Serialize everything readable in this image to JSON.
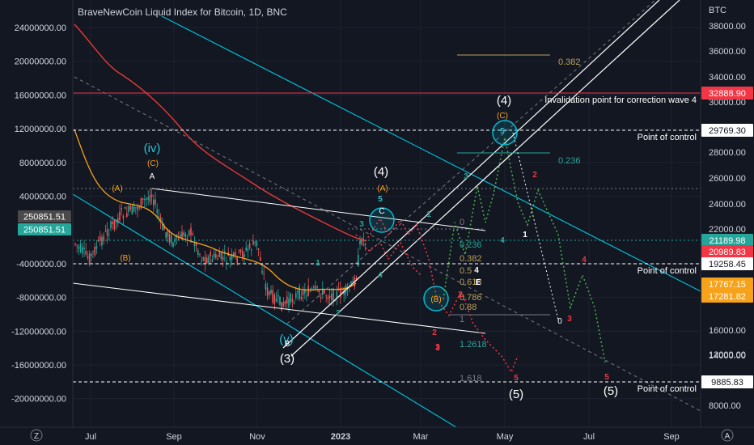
{
  "header": {
    "title": "BraveNewCoin Liquid Index for Bitcoin, 1D, BNC"
  },
  "colors": {
    "background": "#131722",
    "candle_up": "#26a69a",
    "candle_down": "#ef5350",
    "ma_short": "#f7a21b",
    "ma_long": "#e53935",
    "channel": "#ffffff",
    "trendline": "#00bcd4",
    "invalidation": "#f23645",
    "fib_gold": "#b8a05a",
    "fib_teal": "#26a69a",
    "path_red": "#f23645",
    "path_green": "#4caf50",
    "path_white": "#ffffff"
  },
  "chart_data": {
    "type": "line",
    "title": "BraveNewCoin Liquid Index for Bitcoin, 1D, BNC",
    "x_ticks": [
      "Jul",
      "Sep",
      "Nov",
      "2023",
      "Mar",
      "May",
      "Jul",
      "Sep"
    ],
    "left_axis": {
      "ticks": [
        24000000,
        20000000,
        16000000,
        12000000,
        8000000,
        4000000,
        -4000000,
        -8000000,
        -12000000,
        -16000000,
        -20000000
      ],
      "labels": [
        "24000000.00",
        "20000000.00",
        "16000000.00",
        "12000000.00",
        "8000000.00",
        "4000000.00",
        "-4000000.00",
        "-8000000.00",
        "-12000000.00",
        "-16000000.00",
        "-20000000.00"
      ],
      "tags": [
        {
          "label": "250851.51",
          "color": "#4a4a4a"
        },
        {
          "label": "250851.51",
          "color": "#26a69a"
        }
      ]
    },
    "right_axis": {
      "unit": "BTC",
      "scale": "log",
      "range": [
        7000,
        44000
      ],
      "ticks": [
        38000,
        36000,
        34000,
        30000,
        28000,
        26000,
        24000,
        22000,
        16000,
        14000,
        12000,
        10000,
        8000
      ],
      "labels": [
        "38000.00",
        "36000.00",
        "34000.00",
        "30000.00",
        "28000.00",
        "26000.00",
        "24000.00",
        "22000.00",
        "16000.00",
        "14000.00",
        "12000.00",
        "10000.00",
        "8000.00"
      ],
      "tags": [
        {
          "label": "32888.90",
          "value": 32888.9,
          "color": "#f23645"
        },
        {
          "label": "29769.30",
          "value": 29769.3,
          "color": "#ffffff"
        },
        {
          "label": "21189.98",
          "value": 21189.98,
          "color": "#26a69a"
        },
        {
          "label": "20989.83",
          "value": 20989.83,
          "color": "#f23645"
        },
        {
          "label": "19258.45",
          "value": 19258.45,
          "color": "#ffffff"
        },
        {
          "label": "17767.15",
          "value": 17767.15,
          "color": "#f7a21b"
        },
        {
          "label": "17281.82",
          "value": 17281.82,
          "color": "#f7a21b"
        },
        {
          "label": "9885.83",
          "value": 9885.83,
          "color": "#ffffff"
        }
      ]
    },
    "horizontal_levels": [
      {
        "value": 32888.9,
        "label": "Invalidation point for correction wave 4",
        "style": "solid",
        "color": "#f23645"
      },
      {
        "value": 29769.3,
        "label": "Point of control",
        "style": "dashed",
        "color": "#ffffff"
      },
      {
        "value": 19258.45,
        "label": "Point of control",
        "style": "dashed",
        "color": "#ffffff"
      },
      {
        "value": 9885.83,
        "label": "Point of control",
        "style": "dashed",
        "color": "#ffffff"
      }
    ],
    "fib_levels": [
      {
        "label": "0.382",
        "color": "#b8a05a"
      },
      {
        "label": "0.236",
        "color": "#26a69a"
      },
      {
        "label": "0",
        "color": "#787b86"
      },
      {
        "label": "0.236",
        "color": "#26a69a"
      },
      {
        "label": "0.382",
        "color": "#b8a05a"
      },
      {
        "label": "0.5",
        "color": "#b8a05a"
      },
      {
        "label": "0.618",
        "color": "#b8a05a"
      },
      {
        "label": "0.786",
        "color": "#b8a05a"
      },
      {
        "label": "0.88",
        "color": "#b8a05a"
      },
      {
        "label": "1",
        "color": "#787b86"
      },
      {
        "label": "1.2618",
        "color": "#26a69a"
      },
      {
        "label": "1.618",
        "color": "#787b86"
      }
    ],
    "wave_labels": {
      "big": [
        "(4)",
        "(4)",
        "(3)",
        "(5)",
        "(5)",
        "(iv)",
        "(v)"
      ],
      "orange": [
        "(A)",
        "(B)",
        "(C)",
        "(A)",
        "(C)",
        "(B)"
      ],
      "white": [
        "A",
        "B",
        "C",
        "0"
      ],
      "numbers": [
        "1",
        "2",
        "3",
        "4",
        "5",
        "1",
        "2",
        "3",
        "4",
        "5",
        "2",
        "3",
        "4",
        "5",
        "4",
        "5",
        "3",
        "3",
        "1",
        "2",
        "E"
      ]
    }
  }
}
